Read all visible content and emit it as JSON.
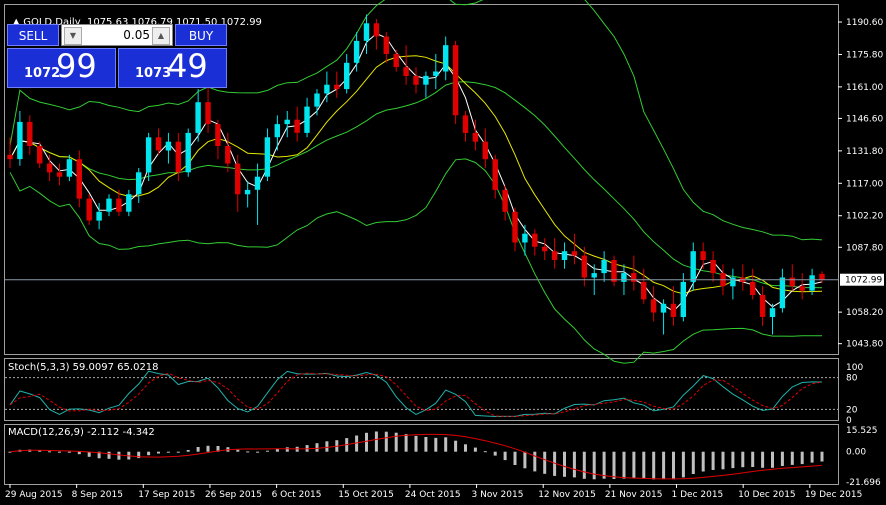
{
  "header": {
    "symbol_title": "GOLD,Daily",
    "ohlc": "1075.63 1076.79 1071.50 1072.99"
  },
  "trade_panel": {
    "sell_label": "SELL",
    "buy_label": "BUY",
    "lot_value": "0.05",
    "sell_price_small": "1072",
    "sell_price_big": "99",
    "buy_price_small": "1073",
    "buy_price_big": "49"
  },
  "price_axis": {
    "ticks": [
      "1190.60",
      "1175.80",
      "1161.00",
      "1146.60",
      "1131.80",
      "1117.00",
      "1102.20",
      "1087.80",
      "1058.20",
      "1043.80"
    ],
    "current_price_label": "1072.99"
  },
  "stoch_panel": {
    "label": "Stoch(5,3,3) 59.0097 65.0218",
    "ticks": [
      "100",
      "80",
      "20",
      "0"
    ]
  },
  "macd_panel": {
    "label": "MACD(12,26,9) -2.112 -4.342",
    "ticks": [
      "15.525",
      "0.00",
      "-21.696"
    ]
  },
  "time_axis": {
    "ticks": [
      "29 Aug 2015",
      "8 Sep 2015",
      "17 Sep 2015",
      "26 Sep 2015",
      "6 Oct 2015",
      "15 Oct 2015",
      "24 Oct 2015",
      "3 Nov 2015",
      "12 Nov 2015",
      "21 Nov 2015",
      "1 Dec 2015",
      "10 Dec 2015",
      "19 Dec 2015"
    ]
  },
  "colors": {
    "bull_candle": "#00e5ee",
    "bear_candle": "#e00000",
    "bollinger": "#33cc33",
    "ma_fast": "#ffffff",
    "ma_slow": "#e6e600",
    "trade_panel": "#1b2fd6",
    "stoch_main": "#20b2aa",
    "stoch_signal": "#e00000",
    "macd_signal": "#e00000",
    "macd_hist": "#c0c0c0"
  },
  "chart_data": {
    "type": "candlestick",
    "ylim": [
      1040,
      1197
    ],
    "candles": [
      [
        1130,
        1138,
        1124,
        1128
      ],
      [
        1128,
        1150,
        1125,
        1145
      ],
      [
        1145,
        1148,
        1130,
        1134
      ],
      [
        1134,
        1136,
        1124,
        1126
      ],
      [
        1126,
        1130,
        1118,
        1122
      ],
      [
        1122,
        1126,
        1116,
        1120
      ],
      [
        1120,
        1130,
        1118,
        1128
      ],
      [
        1128,
        1132,
        1106,
        1110
      ],
      [
        1110,
        1112,
        1098,
        1100
      ],
      [
        1100,
        1108,
        1096,
        1104
      ],
      [
        1104,
        1112,
        1102,
        1110
      ],
      [
        1110,
        1114,
        1102,
        1104
      ],
      [
        1104,
        1114,
        1102,
        1112
      ],
      [
        1112,
        1124,
        1108,
        1122
      ],
      [
        1122,
        1140,
        1118,
        1138
      ],
      [
        1138,
        1142,
        1130,
        1132
      ],
      [
        1132,
        1140,
        1126,
        1136
      ],
      [
        1136,
        1140,
        1118,
        1122
      ],
      [
        1122,
        1142,
        1120,
        1140
      ],
      [
        1140,
        1160,
        1136,
        1154
      ],
      [
        1154,
        1162,
        1140,
        1144
      ],
      [
        1144,
        1146,
        1128,
        1134
      ],
      [
        1134,
        1140,
        1122,
        1126
      ],
      [
        1126,
        1130,
        1104,
        1112
      ],
      [
        1112,
        1118,
        1106,
        1114
      ],
      [
        1114,
        1126,
        1098,
        1120
      ],
      [
        1120,
        1142,
        1118,
        1138
      ],
      [
        1138,
        1148,
        1132,
        1144
      ],
      [
        1144,
        1150,
        1138,
        1146
      ],
      [
        1146,
        1152,
        1136,
        1140
      ],
      [
        1140,
        1156,
        1138,
        1152
      ],
      [
        1152,
        1160,
        1148,
        1158
      ],
      [
        1158,
        1168,
        1154,
        1162
      ],
      [
        1162,
        1168,
        1156,
        1160
      ],
      [
        1160,
        1176,
        1158,
        1172
      ],
      [
        1172,
        1186,
        1168,
        1182
      ],
      [
        1182,
        1194,
        1176,
        1190
      ],
      [
        1190,
        1192,
        1178,
        1184
      ],
      [
        1184,
        1186,
        1172,
        1176
      ],
      [
        1176,
        1178,
        1168,
        1170
      ],
      [
        1170,
        1180,
        1162,
        1166
      ],
      [
        1166,
        1170,
        1158,
        1162
      ],
      [
        1162,
        1168,
        1156,
        1166
      ],
      [
        1166,
        1176,
        1160,
        1168
      ],
      [
        1168,
        1184,
        1164,
        1180
      ],
      [
        1180,
        1182,
        1144,
        1148
      ],
      [
        1148,
        1150,
        1136,
        1140
      ],
      [
        1140,
        1146,
        1132,
        1136
      ],
      [
        1136,
        1142,
        1124,
        1128
      ],
      [
        1128,
        1130,
        1110,
        1114
      ],
      [
        1114,
        1116,
        1100,
        1104
      ],
      [
        1104,
        1106,
        1086,
        1090
      ],
      [
        1090,
        1098,
        1084,
        1094
      ],
      [
        1094,
        1096,
        1084,
        1088
      ],
      [
        1088,
        1092,
        1082,
        1086
      ],
      [
        1086,
        1092,
        1078,
        1082
      ],
      [
        1082,
        1090,
        1078,
        1086
      ],
      [
        1086,
        1094,
        1080,
        1084
      ],
      [
        1084,
        1088,
        1070,
        1074
      ],
      [
        1074,
        1080,
        1066,
        1076
      ],
      [
        1076,
        1086,
        1072,
        1082
      ],
      [
        1082,
        1084,
        1070,
        1072
      ],
      [
        1072,
        1080,
        1066,
        1076
      ],
      [
        1076,
        1084,
        1068,
        1072
      ],
      [
        1072,
        1078,
        1062,
        1064
      ],
      [
        1064,
        1070,
        1054,
        1058
      ],
      [
        1058,
        1064,
        1048,
        1062
      ],
      [
        1062,
        1070,
        1052,
        1056
      ],
      [
        1056,
        1076,
        1054,
        1072
      ],
      [
        1072,
        1090,
        1068,
        1086
      ],
      [
        1086,
        1090,
        1078,
        1082
      ],
      [
        1082,
        1086,
        1072,
        1076
      ],
      [
        1076,
        1080,
        1066,
        1070
      ],
      [
        1070,
        1078,
        1064,
        1074
      ],
      [
        1074,
        1080,
        1068,
        1072
      ],
      [
        1072,
        1078,
        1064,
        1066
      ],
      [
        1066,
        1070,
        1052,
        1056
      ],
      [
        1056,
        1062,
        1048,
        1060
      ],
      [
        1060,
        1078,
        1058,
        1074
      ],
      [
        1074,
        1080,
        1068,
        1070
      ],
      [
        1070,
        1076,
        1064,
        1068
      ],
      [
        1068,
        1078,
        1066,
        1075
      ],
      [
        1075.63,
        1076.79,
        1071.5,
        1072.99
      ]
    ],
    "current_price": 1072.99
  }
}
